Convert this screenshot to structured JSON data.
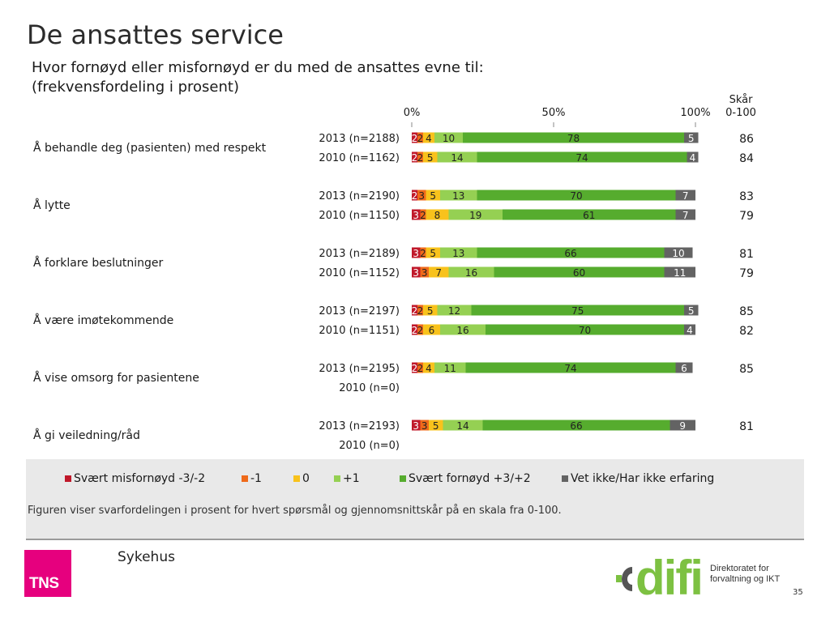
{
  "slide": {
    "title": "De ansattes service",
    "subtitle_line1": "Hvor fornøyd eller misfornøyd er du med de ansattes evne til:",
    "subtitle_line2": "(frekvensfordeling i prosent)",
    "score_header_line1": "Skår",
    "score_header_line2": "0-100",
    "footnote": "Figuren viser svarfordelingen i prosent for hvert spørsmål og gjennomsnittskår på en skala fra 0-100.",
    "footer_label": "Sykehus",
    "tns_logo_text": "TNS",
    "difi_logo_text": "difi",
    "difi_org_line1": "Direktoratet for",
    "difi_org_line2": "forvaltning og IKT",
    "page_number": "35"
  },
  "chart_data": {
    "type": "bar",
    "orientation": "horizontal",
    "stacked": true,
    "percent_scale": true,
    "x_ticks": [
      "0%",
      "50%",
      "100%"
    ],
    "xlim": [
      0,
      100
    ],
    "legend_position": "bottom",
    "series_names": [
      "Svært misfornøyd -3/-2",
      "-1",
      "0",
      "+1",
      "Svært fornøyd +3/+2",
      "Vet ikke/Har ikke erfaring"
    ],
    "series_colors": [
      "#c0182a",
      "#ef6a1a",
      "#f8c21c",
      "#95d053",
      "#56ac2e",
      "#636363"
    ],
    "label_colors": [
      "#ffffff",
      "#222222",
      "#222222",
      "#222222",
      "#222222",
      "#ffffff"
    ],
    "groups": [
      {
        "category": "Å behandle deg (pasienten) med respekt",
        "rows": [
          {
            "label": "2013 (n=2188)",
            "values": [
              2,
              2,
              4,
              10,
              78,
              5
            ],
            "score": "86"
          },
          {
            "label": "2010 (n=1162)",
            "values": [
              2,
              2,
              5,
              14,
              74,
              4
            ],
            "score": "84"
          }
        ]
      },
      {
        "category": "Å lytte",
        "rows": [
          {
            "label": "2013 (n=2190)",
            "values": [
              2,
              3,
              5,
              13,
              70,
              7
            ],
            "score": "83"
          },
          {
            "label": "2010 (n=1150)",
            "values": [
              3,
              2,
              8,
              19,
              61,
              7
            ],
            "score": "79"
          }
        ]
      },
      {
        "category": "Å forklare beslutninger",
        "rows": [
          {
            "label": "2013 (n=2189)",
            "values": [
              3,
              2,
              5,
              13,
              66,
              10
            ],
            "score": "81"
          },
          {
            "label": "2010 (n=1152)",
            "values": [
              3,
              3,
              7,
              16,
              60,
              11
            ],
            "score": "79"
          }
        ]
      },
      {
        "category": "Å være imøtekommende",
        "rows": [
          {
            "label": "2013 (n=2197)",
            "values": [
              2,
              2,
              5,
              12,
              75,
              5
            ],
            "score": "85"
          },
          {
            "label": "2010 (n=1151)",
            "values": [
              2,
              2,
              6,
              16,
              70,
              4
            ],
            "score": "82"
          }
        ]
      },
      {
        "category": "Å vise omsorg for pasientene",
        "rows": [
          {
            "label": "2013 (n=2195)",
            "values": [
              2,
              2,
              4,
              11,
              74,
              6
            ],
            "score": "85"
          },
          {
            "label": "2010 (n=0)",
            "values": [],
            "score": ""
          }
        ]
      },
      {
        "category": "Å gi veiledning/råd",
        "rows": [
          {
            "label": "2013 (n=2193)",
            "values": [
              3,
              3,
              5,
              14,
              66,
              9
            ],
            "score": "81"
          },
          {
            "label": "2010 (n=0)",
            "values": [],
            "score": ""
          }
        ]
      }
    ]
  }
}
